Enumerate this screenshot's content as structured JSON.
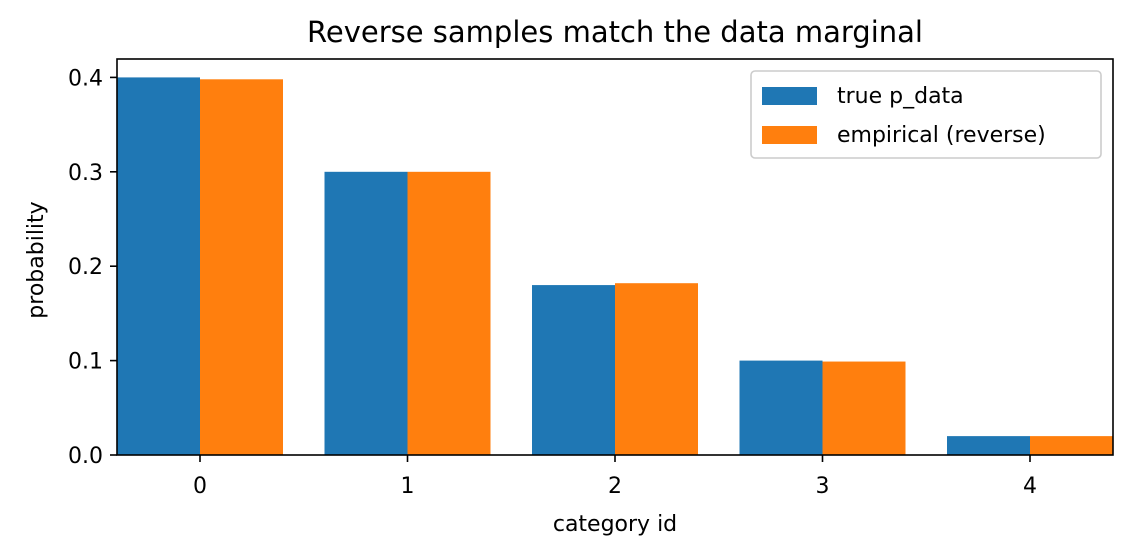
{
  "chart_data": {
    "type": "bar",
    "title": "Reverse samples match the data marginal",
    "xlabel": "category id",
    "ylabel": "probability",
    "categories": [
      "0",
      "1",
      "2",
      "3",
      "4"
    ],
    "series": [
      {
        "name": "true p_data",
        "values": [
          0.4,
          0.3,
          0.18,
          0.1,
          0.02
        ],
        "color": "#1f77b4"
      },
      {
        "name": "empirical (reverse)",
        "values": [
          0.398,
          0.3,
          0.182,
          0.099,
          0.02
        ],
        "color": "#ff7f0e"
      }
    ],
    "ylim": [
      0,
      0.4195
    ],
    "yticks": [
      0.0,
      0.1,
      0.2,
      0.3,
      0.4
    ],
    "ytick_labels": [
      "0.0",
      "0.1",
      "0.2",
      "0.3",
      "0.4"
    ],
    "grid": false,
    "legend_position": "top-right"
  }
}
